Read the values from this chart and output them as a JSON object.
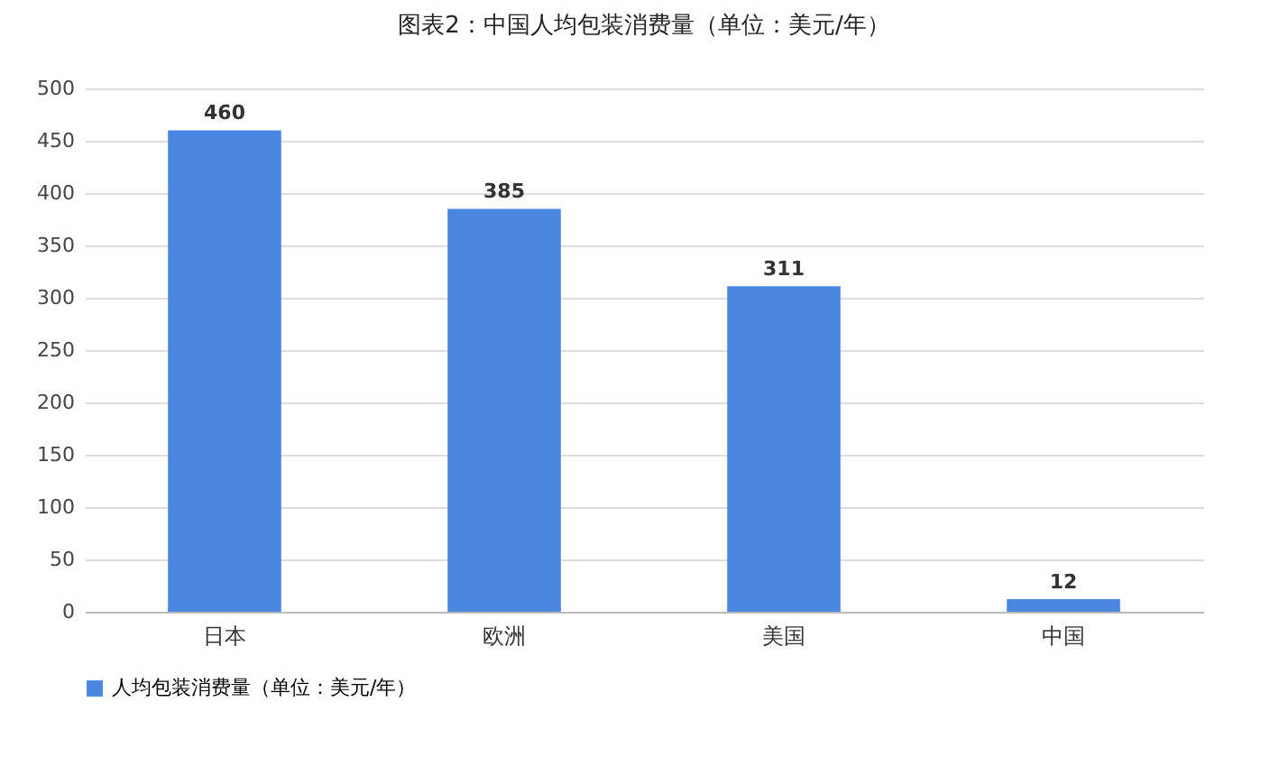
{
  "chart_data": {
    "type": "bar",
    "title": "图表2：中国人均包装消费量（单位：美元/年）",
    "categories": [
      "日本",
      "欧洲",
      "美国",
      "中国"
    ],
    "series": [
      {
        "name": "人均包装消费量（单位：美元/年）",
        "color": "#4a86e0",
        "values": [
          460,
          385,
          311,
          12
        ]
      }
    ],
    "ylim": [
      0,
      500
    ],
    "yticks": [
      0,
      50,
      100,
      150,
      200,
      250,
      300,
      350,
      400,
      450,
      500
    ],
    "grid": "y",
    "legend": "bottom",
    "data_labels": true
  }
}
